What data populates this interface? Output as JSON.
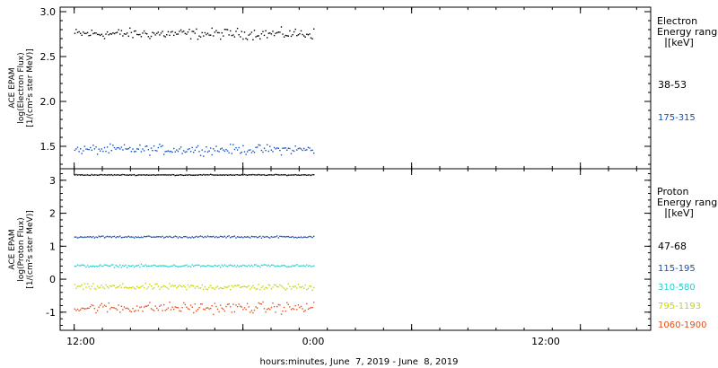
{
  "chart_data": [
    {
      "type": "scatter",
      "panel": "electron",
      "ylabel_lines": [
        "ACE EPAM",
        "log(Electron Flux)",
        "[1/(cm²s ster MeV)]"
      ],
      "yticks": [
        "3.0",
        "2.5",
        "2.0",
        "1.5"
      ],
      "ylim": [
        1.25,
        3.05
      ],
      "legend_title": [
        "Electron",
        "Energy range",
        "[keV]"
      ],
      "series": [
        {
          "name": "38-53",
          "color": "#000000",
          "mean": 2.76,
          "spread": 0.05
        },
        {
          "name": "175-315",
          "color": "#0b4fc8",
          "mean": 1.47,
          "spread": 0.045
        }
      ]
    },
    {
      "type": "scatter",
      "panel": "proton",
      "ylabel_lines": [
        "ACE EPAM",
        "log(Proton Flux)",
        "[1/(cm²s ster MeV)]"
      ],
      "yticks": [
        "3",
        "2",
        "1",
        "0",
        "-1"
      ],
      "ylim": [
        -1.55,
        3.35
      ],
      "legend_title": [
        "Proton",
        "Energy range",
        "[keV]"
      ],
      "series": [
        {
          "name": "47-68",
          "color": "#000000",
          "mean": 3.18,
          "spread": 0.012
        },
        {
          "name": "115-195",
          "color": "#1f4fa8",
          "mean": 1.3,
          "spread": 0.025
        },
        {
          "name": "310-580",
          "color": "#22cfcf",
          "mean": 0.42,
          "spread": 0.035
        },
        {
          "name": "795-1193",
          "color": "#c8d600",
          "mean": -0.22,
          "spread": 0.08
        },
        {
          "name": "1060-1900",
          "color": "#e0501a",
          "mean": -0.85,
          "spread": 0.14
        }
      ]
    }
  ],
  "xaxis": {
    "tick_labels": [
      "12:00",
      "0:00",
      "12:00"
    ],
    "label": "hours:minutes, June  7, 2019 - June  8, 2019",
    "range_hours": [
      -1,
      41
    ],
    "data_range_hours": [
      0,
      17
    ],
    "major_ticks_hours": [
      0,
      12,
      24,
      36
    ],
    "minor_tick_step_hours": 2
  }
}
